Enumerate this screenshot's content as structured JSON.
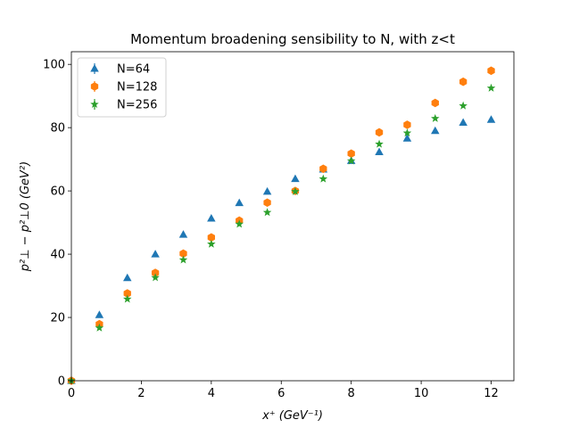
{
  "chart_data": {
    "type": "scatter",
    "title": "Momentum broadening sensibility to N, with z<t",
    "xlabel": "x⁺ (GeV⁻¹)",
    "ylabel": "p²⊥ − p²⊥0 (GeV²)",
    "xlim": [
      0,
      12.65
    ],
    "ylim": [
      0,
      104
    ],
    "xticks": [
      0,
      2,
      4,
      6,
      8,
      10,
      12
    ],
    "yticks": [
      0,
      20,
      40,
      60,
      80,
      100
    ],
    "grid": false,
    "legend_position": "top-left",
    "series": [
      {
        "name": "N=64",
        "marker": "triangle",
        "color": "#1f77b4",
        "x": [
          0,
          0.8,
          1.6,
          2.4,
          3.2,
          4.0,
          4.8,
          5.6,
          6.4,
          7.2,
          8.0,
          8.8,
          9.6,
          10.4,
          11.2,
          12.0
        ],
        "y": [
          0,
          20.8,
          32.5,
          40.0,
          46.2,
          51.3,
          56.2,
          59.8,
          63.8,
          66.8,
          69.5,
          72.3,
          76.6,
          79.0,
          81.6,
          82.5
        ]
      },
      {
        "name": "N=128",
        "marker": "hexagon",
        "color": "#ff7f0e",
        "x": [
          0,
          0.8,
          1.6,
          2.4,
          3.2,
          4.0,
          4.8,
          5.6,
          6.4,
          7.2,
          8.0,
          8.8,
          9.6,
          10.4,
          11.2,
          12.0
        ],
        "y": [
          0,
          17.9,
          27.6,
          34.1,
          40.2,
          45.3,
          50.6,
          56.3,
          60.0,
          67.0,
          71.8,
          78.5,
          80.9,
          87.8,
          94.5,
          98.0
        ]
      },
      {
        "name": "N=256",
        "marker": "star",
        "color": "#2ca02c",
        "x": [
          0,
          0.8,
          1.6,
          2.4,
          3.2,
          4.0,
          4.8,
          5.6,
          6.4,
          7.2,
          8.0,
          8.8,
          9.6,
          10.4,
          11.2,
          12.0
        ],
        "y": [
          0,
          16.7,
          25.8,
          32.6,
          38.2,
          43.2,
          49.5,
          53.2,
          59.8,
          63.8,
          69.5,
          74.8,
          78.3,
          82.9,
          86.9,
          92.5
        ]
      }
    ]
  }
}
